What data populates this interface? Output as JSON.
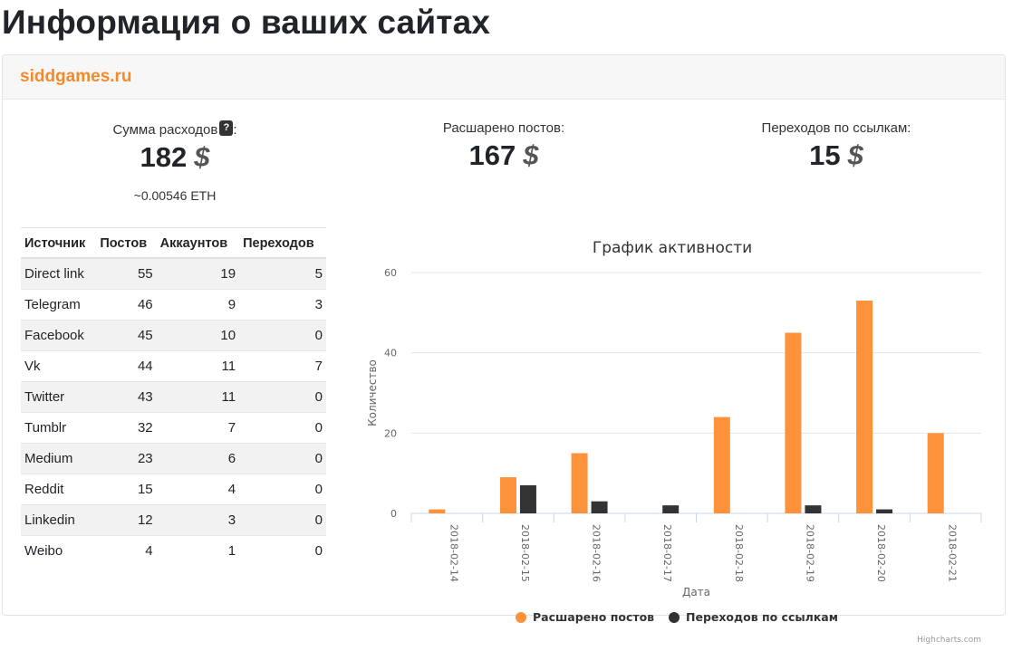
{
  "page": {
    "title": "Информация о ваших сайтах"
  },
  "site": {
    "name": "siddgames.ru"
  },
  "stats": {
    "expenses": {
      "label": "Сумма расходов",
      "suffix": ":",
      "value": "182",
      "currency_symbol": "$",
      "eth": "~0.00546 ETH",
      "help": "?"
    },
    "posts": {
      "label": "Расшарено постов:",
      "value": "167",
      "currency_symbol": "$"
    },
    "clicks": {
      "label": "Переходов по ссылкам:",
      "value": "15",
      "currency_symbol": "$"
    }
  },
  "table": {
    "headers": [
      "Источник",
      "Постов",
      "Аккаунтов",
      "Переходов"
    ],
    "rows": [
      [
        "Direct link",
        "55",
        "19",
        "5"
      ],
      [
        "Telegram",
        "46",
        "9",
        "3"
      ],
      [
        "Facebook",
        "45",
        "10",
        "0"
      ],
      [
        "Vk",
        "44",
        "11",
        "7"
      ],
      [
        "Twitter",
        "43",
        "11",
        "0"
      ],
      [
        "Tumblr",
        "32",
        "7",
        "0"
      ],
      [
        "Medium",
        "23",
        "6",
        "0"
      ],
      [
        "Reddit",
        "15",
        "4",
        "0"
      ],
      [
        "Linkedin",
        "12",
        "3",
        "0"
      ],
      [
        "Weibo",
        "4",
        "1",
        "0"
      ]
    ]
  },
  "chart_data": {
    "type": "bar",
    "title": "График активности",
    "xlabel": "Дата",
    "ylabel": "Количество",
    "ylim": [
      0,
      60
    ],
    "yticks": [
      0,
      20,
      40,
      60
    ],
    "grid": true,
    "legend": "bottom-center",
    "categories": [
      "2018-02-14",
      "2018-02-15",
      "2018-02-16",
      "2018-02-17",
      "2018-02-18",
      "2018-02-19",
      "2018-02-20",
      "2018-02-21"
    ],
    "series": [
      {
        "name": "Расшарено постов",
        "color": "#fd923a",
        "values": [
          1,
          9,
          15,
          0,
          24,
          45,
          53,
          20
        ]
      },
      {
        "name": "Переходов по ссылкам",
        "color": "#333333",
        "values": [
          0,
          7,
          3,
          2,
          0,
          2,
          1,
          0
        ]
      }
    ],
    "credits": "Highcharts.com"
  }
}
